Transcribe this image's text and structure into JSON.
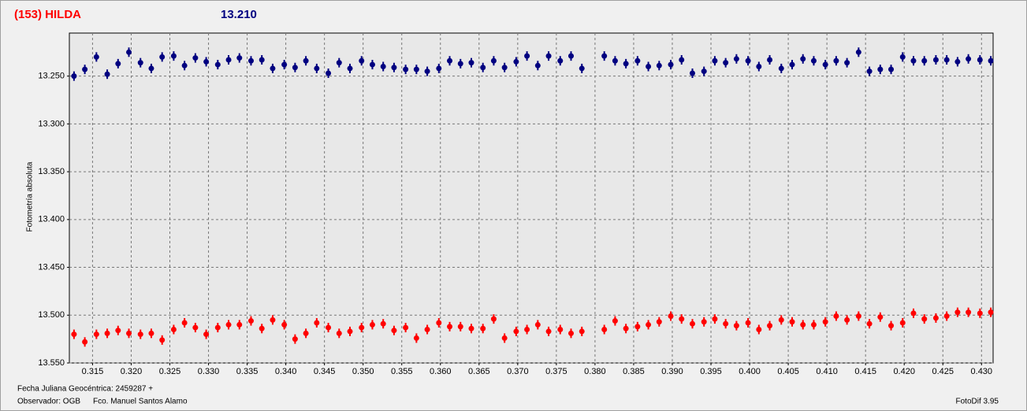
{
  "chart_data": {
    "type": "scatter",
    "title": "(153) HILDA",
    "subtitle": "13.210",
    "ylabel": "Fotometría absoluta",
    "xlim": [
      0.312,
      0.4315
    ],
    "ylim": [
      13.205,
      13.55
    ],
    "y_inverted": true,
    "grid": true,
    "xticks": [
      {
        "value": 0.315,
        "label": "0.315"
      },
      {
        "value": 0.32,
        "label": "0.320"
      },
      {
        "value": 0.325,
        "label": "0.325"
      },
      {
        "value": 0.33,
        "label": "0.330"
      },
      {
        "value": 0.335,
        "label": "0.335"
      },
      {
        "value": 0.34,
        "label": "0.340"
      },
      {
        "value": 0.345,
        "label": "0.345"
      },
      {
        "value": 0.35,
        "label": "0.350"
      },
      {
        "value": 0.355,
        "label": "0.355"
      },
      {
        "value": 0.36,
        "label": "0.360"
      },
      {
        "value": 0.365,
        "label": "0.365"
      },
      {
        "value": 0.37,
        "label": "0.370"
      },
      {
        "value": 0.375,
        "label": "0.375"
      },
      {
        "value": 0.38,
        "label": "0.380"
      },
      {
        "value": 0.385,
        "label": "0.385"
      },
      {
        "value": 0.39,
        "label": "0.390"
      },
      {
        "value": 0.395,
        "label": "0.395"
      },
      {
        "value": 0.4,
        "label": "0.400"
      },
      {
        "value": 0.405,
        "label": "0.405"
      },
      {
        "value": 0.41,
        "label": "0.410"
      },
      {
        "value": 0.415,
        "label": "0.415"
      },
      {
        "value": 0.42,
        "label": "0.420"
      },
      {
        "value": 0.425,
        "label": "0.425"
      },
      {
        "value": 0.43,
        "label": "0.430"
      }
    ],
    "yticks": [
      {
        "value": 13.25,
        "label": "13.250"
      },
      {
        "value": 13.3,
        "label": "13.300"
      },
      {
        "value": 13.35,
        "label": "13.350"
      },
      {
        "value": 13.4,
        "label": "13.400"
      },
      {
        "value": 13.45,
        "label": "13.450"
      },
      {
        "value": 13.5,
        "label": "13.500"
      },
      {
        "value": 13.55,
        "label": "13.550"
      }
    ],
    "x": [
      0.3126,
      0.314,
      0.3155,
      0.3169,
      0.3183,
      0.3197,
      0.3212,
      0.3226,
      0.324,
      0.3255,
      0.3269,
      0.3283,
      0.3297,
      0.3312,
      0.3326,
      0.334,
      0.3355,
      0.3369,
      0.3383,
      0.3398,
      0.3412,
      0.3426,
      0.344,
      0.3455,
      0.3469,
      0.3483,
      0.3498,
      0.3512,
      0.3526,
      0.354,
      0.3555,
      0.3569,
      0.3583,
      0.3598,
      0.3612,
      0.3626,
      0.364,
      0.3655,
      0.3669,
      0.3683,
      0.3698,
      0.3712,
      0.3726,
      0.374,
      0.3755,
      0.3769,
      0.3783,
      0.3812,
      0.3826,
      0.384,
      0.3855,
      0.3869,
      0.3883,
      0.3898,
      0.3912,
      0.3926,
      0.3941,
      0.3955,
      0.3969,
      0.3983,
      0.3998,
      0.4012,
      0.4026,
      0.4041,
      0.4055,
      0.4069,
      0.4083,
      0.4098,
      0.4112,
      0.4126,
      0.4141,
      0.4155,
      0.4169,
      0.4183,
      0.4198,
      0.4212,
      0.4226,
      0.4241,
      0.4255,
      0.4269,
      0.4283,
      0.4298,
      0.4312
    ],
    "series": [
      {
        "color": "#000080",
        "values": [
          13.25,
          13.243,
          13.23,
          13.248,
          13.237,
          13.225,
          13.236,
          13.242,
          13.23,
          13.229,
          13.239,
          13.231,
          13.235,
          13.238,
          13.233,
          13.231,
          13.234,
          13.233,
          13.242,
          13.238,
          13.241,
          13.234,
          13.242,
          13.247,
          13.236,
          13.242,
          13.234,
          13.238,
          13.24,
          13.241,
          13.243,
          13.243,
          13.245,
          13.242,
          13.234,
          13.237,
          13.236,
          13.241,
          13.234,
          13.241,
          13.235,
          13.229,
          13.239,
          13.229,
          13.234,
          13.229,
          13.242,
          13.229,
          13.234,
          13.237,
          13.234,
          13.24,
          13.239,
          13.238,
          13.233,
          13.247,
          13.245,
          13.234,
          13.236,
          13.232,
          13.234,
          13.24,
          13.233,
          13.242,
          13.238,
          13.232,
          13.234,
          13.238,
          13.234,
          13.236,
          13.225,
          13.245,
          13.243,
          13.243,
          13.23,
          13.234,
          13.234,
          13.233,
          13.233,
          13.235,
          13.232,
          13.233,
          13.234
        ]
      },
      {
        "color": "#ff0000",
        "values": [
          13.52,
          13.528,
          13.52,
          13.519,
          13.516,
          13.519,
          13.52,
          13.519,
          13.526,
          13.515,
          13.508,
          13.513,
          13.52,
          13.513,
          13.51,
          13.51,
          13.506,
          13.514,
          13.505,
          13.51,
          13.525,
          13.519,
          13.508,
          13.513,
          13.519,
          13.517,
          13.513,
          13.51,
          13.509,
          13.516,
          13.513,
          13.524,
          13.515,
          13.508,
          13.512,
          13.512,
          13.514,
          13.514,
          13.504,
          13.524,
          13.517,
          13.515,
          13.51,
          13.517,
          13.515,
          13.519,
          13.517,
          13.515,
          13.506,
          13.514,
          13.512,
          13.51,
          13.507,
          13.501,
          13.504,
          13.509,
          13.507,
          13.504,
          13.509,
          13.511,
          13.508,
          13.515,
          13.511,
          13.505,
          13.507,
          13.51,
          13.51,
          13.507,
          13.501,
          13.505,
          13.501,
          13.509,
          13.502,
          13.511,
          13.508,
          13.498,
          13.504,
          13.503,
          13.501,
          13.497,
          13.497,
          13.498,
          13.497
        ]
      }
    ]
  },
  "footer": {
    "date": "Fecha Juliana Geocéntrica: 2459287 +",
    "observer": "Observador: OGB",
    "author": "Fco. Manuel Santos Alamo",
    "version": "FotoDif 3.95"
  }
}
